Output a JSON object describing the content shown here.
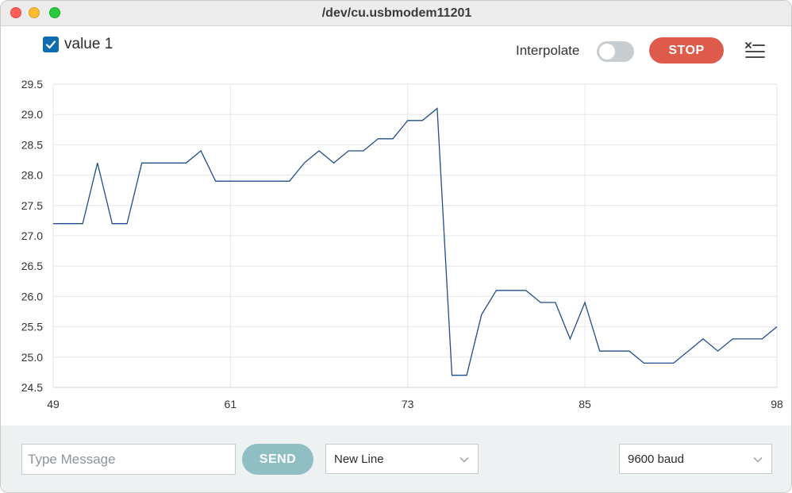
{
  "window": {
    "title": "/dev/cu.usbmodem11201"
  },
  "header": {
    "legend_label": "value 1",
    "legend_checked": true,
    "interpolate_label": "Interpolate",
    "interpolate_on": false,
    "stop_label": "STOP",
    "clear_icon": "clear-output-icon"
  },
  "colors": {
    "line": "#1f4e8a",
    "stop": "#de5b4c",
    "send": "#8fbfc2",
    "checkbox": "#0f6cad"
  },
  "chart_data": {
    "type": "line",
    "x": [
      49,
      50,
      51,
      52,
      53,
      54,
      55,
      56,
      57,
      58,
      59,
      60,
      61,
      62,
      63,
      64,
      65,
      66,
      67,
      68,
      69,
      70,
      71,
      72,
      73,
      74,
      75,
      76,
      77,
      78,
      79,
      80,
      81,
      82,
      83,
      84,
      85,
      86,
      87,
      88,
      89,
      90,
      91,
      92,
      93,
      94,
      95,
      96,
      97,
      98
    ],
    "series": [
      {
        "values": [
          27.2,
          27.2,
          27.2,
          28.2,
          27.2,
          27.2,
          28.2,
          28.2,
          28.2,
          28.2,
          28.4,
          27.9,
          27.9,
          27.9,
          27.9,
          27.9,
          27.9,
          28.2,
          28.4,
          28.2,
          28.4,
          28.4,
          28.6,
          28.6,
          28.9,
          28.9,
          29.1,
          24.7,
          24.7,
          25.7,
          26.1,
          26.1,
          26.1,
          25.9,
          25.9,
          25.3,
          25.9,
          25.1,
          25.1,
          25.1,
          24.9,
          24.9,
          24.9,
          25.1,
          25.3,
          25.1,
          25.3,
          25.3,
          25.3,
          25.5
        ]
      }
    ],
    "xlim": [
      49,
      98
    ],
    "ylim": [
      24.5,
      29.5
    ],
    "x_ticks": [
      "49",
      "61",
      "73",
      "85",
      "98"
    ],
    "y_ticks": [
      "29.5",
      "29.0",
      "28.5",
      "28.0",
      "27.5",
      "27.0",
      "26.5",
      "26.0",
      "25.5",
      "25.0",
      "24.5"
    ],
    "grid": true
  },
  "footer": {
    "message_placeholder": "Type Message",
    "message_value": "",
    "send_label": "SEND",
    "line_ending": "New Line",
    "baud": "9600 baud"
  }
}
